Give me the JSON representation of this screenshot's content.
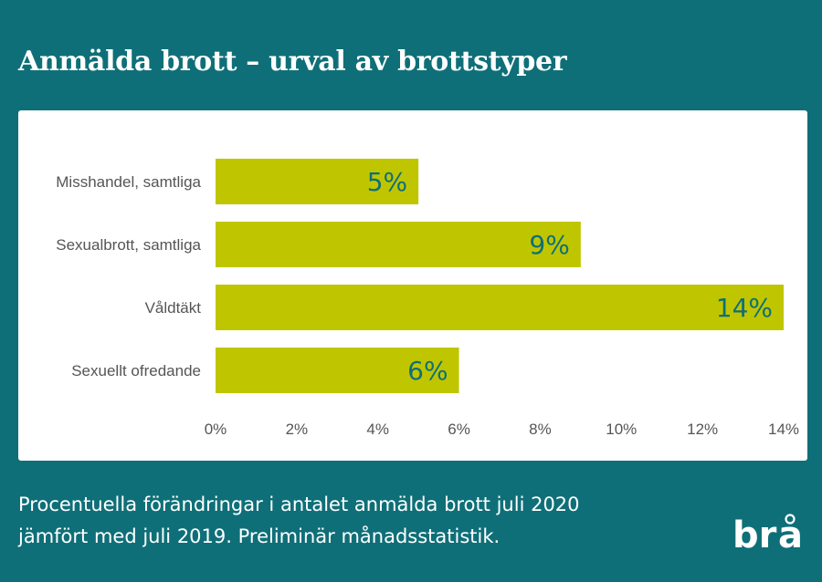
{
  "title": "Anmälda brott – urval av brottstyper",
  "caption": {
    "line1": "Procentuella förändringar i antalet anmälda brott juli 2020",
    "line2": "jämfört med juli 2019. Preliminär månadsstatistik."
  },
  "logo_text": "brå",
  "colors": {
    "background": "#0f6f78",
    "bar": "#bfc600",
    "data_label": "#0f6f78",
    "panel": "#ffffff"
  },
  "chart_data": {
    "type": "bar",
    "orientation": "horizontal",
    "categories": [
      "Misshandel, samtliga",
      "Sexualbrott, samtliga",
      "Våldtäkt",
      "Sexuellt ofredande"
    ],
    "values": [
      5,
      9,
      14,
      6
    ],
    "data_labels": [
      "5%",
      "9%",
      "14%",
      "6%"
    ],
    "xlim": [
      0,
      14
    ],
    "xticks": [
      "0%",
      "2%",
      "4%",
      "6%",
      "8%",
      "10%",
      "12%",
      "14%"
    ],
    "grid": false,
    "legend": "none"
  }
}
